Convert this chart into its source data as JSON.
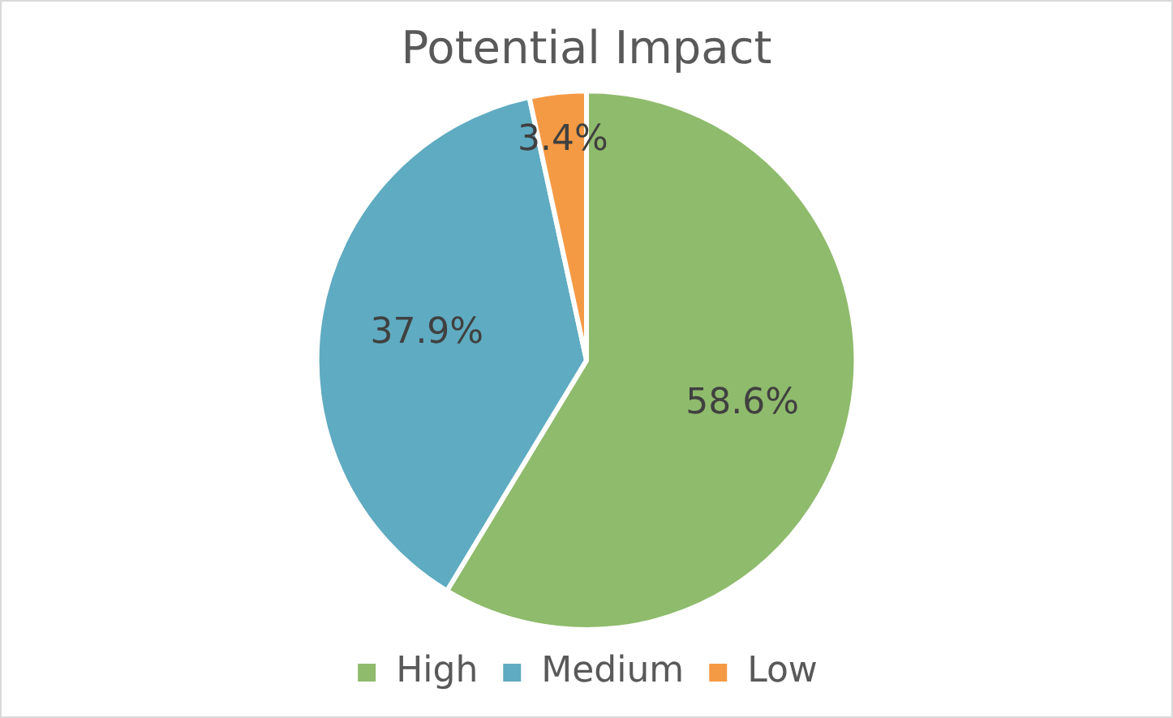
{
  "chart_data": {
    "type": "pie",
    "title": "Potential Impact",
    "categories": [
      "High",
      "Medium",
      "Low"
    ],
    "values": [
      58.6,
      37.9,
      3.4
    ],
    "colors": [
      "#8fbb6c",
      "#5fabc1",
      "#f59a44"
    ],
    "value_labels": [
      "58.6%",
      "37.9%",
      "3.4%"
    ],
    "legend": "bottom"
  }
}
